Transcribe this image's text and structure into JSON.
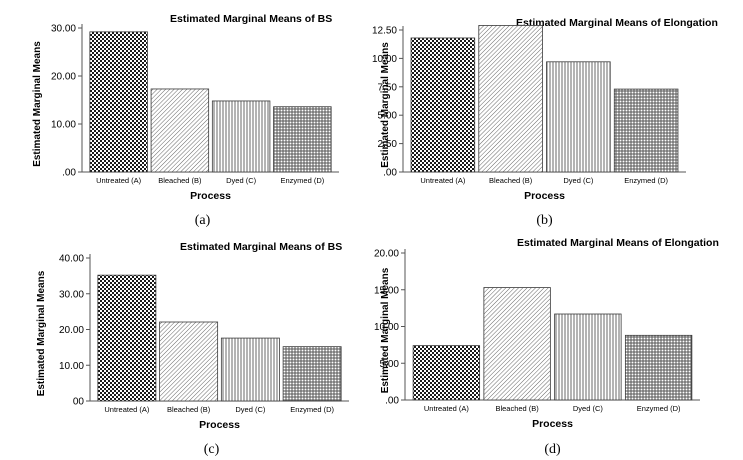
{
  "chart_data": [
    {
      "type": "bar",
      "panel_label": "(a)",
      "title": "Estimated Marginal Means of BS",
      "xlabel": "Process",
      "ylabel": "Estimated Marginal Means",
      "categories": [
        "Untreated (A)",
        "Bleached (B)",
        "Dyed (C)",
        "Enzymed (D)"
      ],
      "values": [
        29.2,
        17.3,
        14.8,
        13.6
      ],
      "yticks": [
        ".00",
        "10.00",
        "20.00",
        "30.00"
      ],
      "ylim": [
        0,
        30
      ],
      "grid": false
    },
    {
      "type": "bar",
      "panel_label": "(b)",
      "title": "Estimated Marginal Means of Elongation",
      "xlabel": "Process",
      "ylabel": "Estimated Marginal Means",
      "categories": [
        "Untreated (A)",
        "Bleached (B)",
        "Dyed (C)",
        "Enzymed (D)"
      ],
      "values": [
        11.8,
        12.9,
        9.7,
        7.3
      ],
      "yticks": [
        ".00",
        "2.50",
        "5.00",
        "7.50",
        "10.00",
        "12.50"
      ],
      "ylim": [
        0,
        12.5
      ],
      "grid": false
    },
    {
      "type": "bar",
      "panel_label": "(c)",
      "title": "Estimated Marginal Means of BS",
      "xlabel": "Process",
      "ylabel": "Estimated Marginal Means",
      "categories": [
        "Untreated (A)",
        "Bleached (B)",
        "Dyed (C)",
        "Enzymed (D)"
      ],
      "values": [
        35.2,
        22.1,
        17.6,
        15.2
      ],
      "yticks": [
        "00",
        "10.00",
        "20.00",
        "30.00",
        "40.00"
      ],
      "ylim": [
        0,
        40
      ],
      "grid": false
    },
    {
      "type": "bar",
      "panel_label": "(d)",
      "title": "Estimated Marginal Means of Elongation",
      "xlabel": "Process",
      "ylabel": "Estimated Marginal Means",
      "categories": [
        "Untreated (A)",
        "Bleached (B)",
        "Dyed (C)",
        "Enzymed (D)"
      ],
      "values": [
        7.4,
        15.3,
        11.7,
        8.8
      ],
      "yticks": [
        ".00",
        "5.00",
        "10.00",
        "15.00",
        "20.00"
      ],
      "ylim": [
        0,
        20
      ],
      "grid": false
    }
  ],
  "colors": {
    "ink": "#000000",
    "bar_outline": "#3a3a3a",
    "axis": "#555555",
    "background": "#ffffff"
  }
}
